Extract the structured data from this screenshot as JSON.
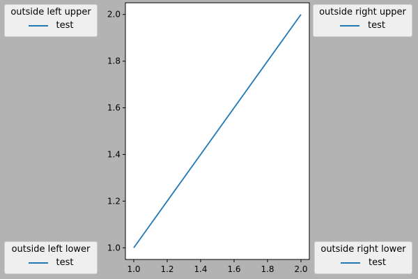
{
  "chart_data": {
    "type": "line",
    "x": [
      1.0,
      2.0
    ],
    "series": [
      {
        "name": "test",
        "values": [
          1.0,
          2.0
        ],
        "color": "#1f77b4"
      }
    ],
    "xlim": [
      0.95,
      2.05
    ],
    "ylim": [
      0.95,
      2.05
    ],
    "x_ticks": [
      1.0,
      1.2,
      1.4,
      1.6,
      1.8,
      2.0
    ],
    "y_ticks": [
      1.0,
      1.2,
      1.4,
      1.6,
      1.8,
      2.0
    ],
    "x_tick_labels": [
      "1.0",
      "1.2",
      "1.4",
      "1.6",
      "1.8",
      "2.0"
    ],
    "y_tick_labels": [
      "1.0",
      "1.2",
      "1.4",
      "1.6",
      "1.8",
      "2.0"
    ],
    "title": "",
    "xlabel": "",
    "ylabel": "",
    "grid": false,
    "legends": [
      {
        "title": "outside left upper",
        "placement": "outside-left-upper",
        "entry": "test"
      },
      {
        "title": "outside right upper",
        "placement": "outside-right-upper",
        "entry": "test"
      },
      {
        "title": "outside left lower",
        "placement": "outside-left-lower",
        "entry": "test"
      },
      {
        "title": "outside right lower",
        "placement": "outside-right-lower",
        "entry": "test"
      }
    ]
  },
  "colors": {
    "figure_background": "#b3b3b3",
    "axes_background": "#ffffff",
    "legend_background": "#efefef",
    "line": "#1f77b4"
  }
}
